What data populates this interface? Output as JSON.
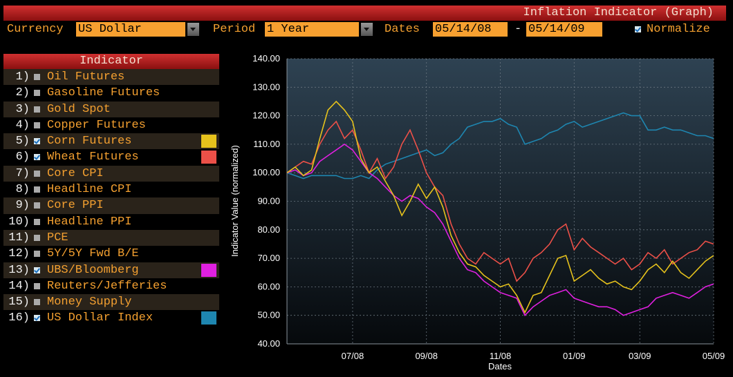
{
  "header": {
    "title": "Inflation Indicator (Graph)"
  },
  "controls": {
    "currency_label": "Currency",
    "currency": "US Dollar",
    "period_label": "Period",
    "period": "1 Year",
    "dates_label": "Dates",
    "date_from": "05/14/08",
    "date_separator": "-",
    "date_to": "05/14/09",
    "normalize": "Normalize",
    "normalize_checked": true
  },
  "indicators": {
    "header": "Indicator",
    "items": [
      {
        "number": "1)",
        "label": "Oil Futures",
        "checked": false
      },
      {
        "number": "2)",
        "label": "Gasoline Futures",
        "checked": false
      },
      {
        "number": "3)",
        "label": "Gold Spot",
        "checked": false
      },
      {
        "number": "4)",
        "label": "Copper Futures",
        "checked": false
      },
      {
        "number": "5)",
        "label": "Corn Futures",
        "checked": true
      },
      {
        "number": "6)",
        "label": "Wheat Futures",
        "checked": true
      },
      {
        "number": "7)",
        "label": "Core CPI",
        "checked": false
      },
      {
        "number": "8)",
        "label": "Headline CPI",
        "checked": false
      },
      {
        "number": "9)",
        "label": "Core PPI",
        "checked": false
      },
      {
        "number": "10)",
        "label": "Headline PPI",
        "checked": false
      },
      {
        "number": "11)",
        "label": "PCE",
        "checked": false
      },
      {
        "number": "12)",
        "label": "5Y/5Y Fwd B/E",
        "checked": false
      },
      {
        "number": "13)",
        "label": "UBS/Bloomberg",
        "checked": true
      },
      {
        "number": "14)",
        "label": "Reuters/Jefferies",
        "checked": false
      },
      {
        "number": "15)",
        "label": "Money Supply",
        "checked": false
      },
      {
        "number": "16)",
        "label": "US Dollar Index",
        "checked": true
      }
    ]
  },
  "chart_data": {
    "type": "line",
    "x_label": "Dates",
    "y_label": "Indicator Value (normalized)",
    "categories": [
      null,
      null,
      null,
      null,
      null,
      null,
      null,
      null,
      "07/08",
      null,
      null,
      null,
      null,
      null,
      null,
      null,
      null,
      "09/08",
      null,
      null,
      null,
      null,
      null,
      null,
      null,
      null,
      "11/08",
      null,
      null,
      null,
      null,
      null,
      null,
      null,
      null,
      "01/09",
      null,
      null,
      null,
      null,
      null,
      null,
      null,
      "03/09",
      null,
      null,
      null,
      null,
      null,
      null,
      null,
      null,
      "05/09"
    ],
    "ylim": [
      40,
      140
    ],
    "yticks": [
      {
        "value": 40,
        "label": "40.00"
      },
      {
        "value": 50,
        "label": "50.00"
      },
      {
        "value": 60,
        "label": "60.00"
      },
      {
        "value": 70,
        "label": "70.00"
      },
      {
        "value": 80,
        "label": "80.00"
      },
      {
        "value": 90,
        "label": "90.00"
      },
      {
        "value": 100,
        "label": "100.00"
      },
      {
        "value": 110,
        "label": "110.00"
      },
      {
        "value": 120,
        "label": "120.00"
      },
      {
        "value": 130,
        "label": "130.00"
      },
      {
        "value": 140,
        "label": "140.00"
      }
    ],
    "grid": true,
    "series": [
      {
        "color": "#e6c21c",
        "values": [
          100,
          102,
          99,
          101,
          112,
          122,
          125,
          122,
          118,
          105,
          100,
          102,
          97,
          92,
          85,
          90,
          96,
          91,
          95,
          88,
          78,
          72,
          68,
          67,
          64,
          62,
          60,
          61,
          57,
          51,
          57,
          58,
          64,
          70,
          71,
          62,
          64,
          66,
          63,
          61,
          62,
          60,
          59,
          62,
          66,
          68,
          65,
          69,
          65,
          63,
          66,
          69,
          71
        ]
      },
      {
        "color": "#ec5048",
        "values": [
          100,
          102,
          104,
          103,
          110,
          115,
          118,
          112,
          115,
          108,
          100,
          105,
          98,
          102,
          110,
          115,
          108,
          100,
          95,
          92,
          82,
          75,
          70,
          68,
          72,
          70,
          68,
          70,
          62,
          65,
          70,
          72,
          75,
          80,
          82,
          73,
          77,
          74,
          72,
          70,
          68,
          70,
          66,
          68,
          72,
          70,
          73,
          68,
          70,
          72,
          73,
          76,
          75
        ]
      },
      {
        "color": "#e020e0",
        "values": [
          100,
          101,
          99,
          100,
          104,
          106,
          108,
          110,
          108,
          104,
          100,
          98,
          95,
          92,
          90,
          92,
          91,
          88,
          86,
          82,
          76,
          70,
          66,
          65,
          62,
          60,
          58,
          57,
          56,
          50,
          53,
          55,
          57,
          58,
          59,
          56,
          55,
          54,
          53,
          53,
          52,
          50,
          51,
          52,
          53,
          56,
          57,
          58,
          57,
          56,
          58,
          60,
          61
        ]
      },
      {
        "color": "#1e86b0",
        "values": [
          100,
          99,
          98,
          99,
          99,
          99,
          99,
          98,
          98,
          99,
          98,
          101,
          103,
          104,
          105,
          106,
          107,
          108,
          106,
          107,
          110,
          112,
          116,
          117,
          118,
          118,
          119,
          117,
          116,
          110,
          111,
          112,
          114,
          115,
          117,
          118,
          116,
          117,
          118,
          119,
          120,
          121,
          120,
          120,
          115,
          115,
          116,
          115,
          115,
          114,
          113,
          113,
          112
        ]
      }
    ]
  }
}
